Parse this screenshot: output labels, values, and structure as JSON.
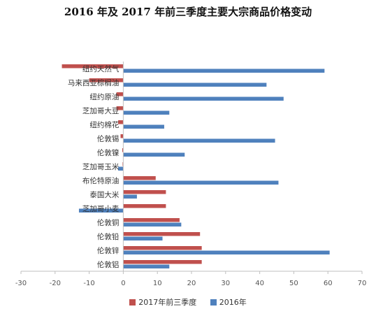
{
  "chart_data": {
    "type": "bar",
    "orientation": "horizontal",
    "title": "2016 年及 2017 年前三季度主要大宗商品价格变动",
    "categories": [
      "纽约天然气",
      "马来西亚棕榈油",
      "纽约原油",
      "芝加哥大豆",
      "纽约棉花",
      "伦敦锡",
      "伦敦镍",
      "芝加哥玉米",
      "布伦特原油",
      "泰国大米",
      "芝加哥小麦",
      "伦敦铜",
      "伦敦铅",
      "伦敦锌",
      "伦敦铝"
    ],
    "series": [
      {
        "name": "2017年前三季度",
        "color": "#c0504d",
        "values": [
          -18,
          -10,
          -2,
          -2,
          -1.5,
          -0.8,
          -0.3,
          -0.2,
          9.5,
          12.5,
          12.5,
          16.5,
          22.5,
          23,
          23
        ]
      },
      {
        "name": "2016年",
        "color": "#4f81bd",
        "values": [
          59,
          42,
          47,
          13.5,
          12,
          44.5,
          18,
          -1.5,
          45.5,
          4,
          -13,
          17,
          11.5,
          60.5,
          13.5
        ]
      }
    ],
    "xlim": [
      -30,
      70
    ],
    "xticks": [
      -30,
      -20,
      -10,
      0,
      10,
      20,
      30,
      40,
      50,
      60,
      70
    ],
    "grid": false,
    "legend_position": "bottom"
  }
}
